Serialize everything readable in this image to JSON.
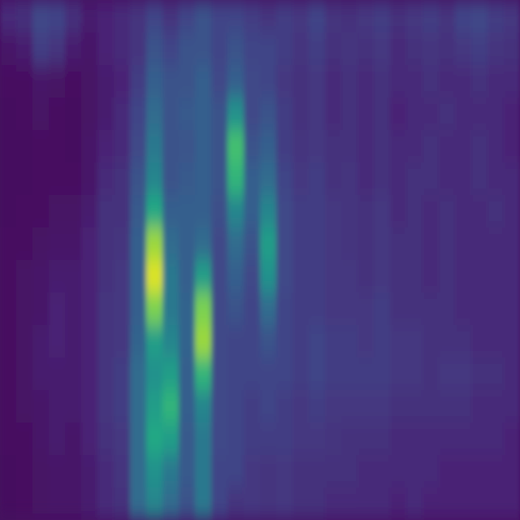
{
  "chart_data": {
    "type": "heatmap",
    "tick_labels": false,
    "zlim": [
      0,
      100
    ],
    "z": [
      [
        12,
        14,
        22,
        20,
        14,
        8,
        10,
        12,
        15,
        20,
        15,
        20,
        25,
        20,
        20,
        18,
        15,
        18,
        16,
        20,
        15,
        14,
        16,
        18,
        14,
        16,
        18,
        15,
        20,
        22,
        18,
        16
      ],
      [
        6,
        8,
        18,
        15,
        8,
        6,
        10,
        12,
        15,
        25,
        20,
        25,
        25,
        20,
        25,
        20,
        20,
        18,
        15,
        18,
        14,
        15,
        14,
        16,
        12,
        14,
        15,
        14,
        16,
        18,
        15,
        14
      ],
      [
        4,
        4,
        6,
        5,
        4,
        5,
        8,
        10,
        18,
        30,
        25,
        25,
        30,
        22,
        30,
        22,
        20,
        16,
        14,
        16,
        12,
        14,
        12,
        14,
        12,
        12,
        14,
        12,
        12,
        14,
        12,
        12
      ],
      [
        3,
        4,
        5,
        4,
        3,
        5,
        8,
        12,
        20,
        35,
        25,
        28,
        30,
        25,
        50,
        22,
        25,
        18,
        14,
        16,
        12,
        14,
        12,
        14,
        10,
        12,
        12,
        14,
        12,
        12,
        12,
        10
      ],
      [
        3,
        3,
        4,
        4,
        3,
        6,
        10,
        12,
        22,
        40,
        25,
        26,
        30,
        25,
        70,
        25,
        30,
        18,
        15,
        16,
        14,
        14,
        12,
        14,
        12,
        12,
        14,
        12,
        12,
        14,
        12,
        10
      ],
      [
        3,
        3,
        4,
        4,
        4,
        6,
        12,
        14,
        25,
        45,
        25,
        28,
        30,
        25,
        65,
        30,
        35,
        20,
        16,
        18,
        14,
        15,
        12,
        14,
        12,
        14,
        14,
        12,
        12,
        14,
        12,
        12
      ],
      [
        3,
        4,
        4,
        5,
        5,
        8,
        14,
        14,
        28,
        60,
        30,
        30,
        30,
        24,
        45,
        30,
        45,
        22,
        18,
        18,
        16,
        15,
        14,
        16,
        12,
        14,
        12,
        14,
        12,
        12,
        14,
        12
      ],
      [
        4,
        4,
        5,
        6,
        6,
        10,
        14,
        15,
        30,
        85,
        35,
        30,
        35,
        22,
        35,
        25,
        55,
        22,
        18,
        18,
        16,
        15,
        14,
        16,
        14,
        14,
        12,
        14,
        12,
        12,
        12,
        12
      ],
      [
        4,
        5,
        6,
        8,
        8,
        10,
        14,
        16,
        30,
        95,
        40,
        30,
        55,
        22,
        30,
        22,
        50,
        22,
        18,
        18,
        16,
        16,
        14,
        16,
        14,
        14,
        12,
        14,
        12,
        12,
        12,
        12
      ],
      [
        4,
        5,
        6,
        10,
        8,
        10,
        15,
        16,
        30,
        80,
        40,
        32,
        80,
        22,
        25,
        20,
        35,
        20,
        18,
        18,
        16,
        16,
        16,
        18,
        14,
        14,
        14,
        14,
        12,
        12,
        12,
        12
      ],
      [
        4,
        5,
        8,
        10,
        8,
        10,
        15,
        16,
        32,
        55,
        45,
        32,
        85,
        22,
        20,
        20,
        25,
        20,
        18,
        20,
        18,
        18,
        16,
        18,
        16,
        16,
        14,
        14,
        14,
        12,
        12,
        12
      ],
      [
        4,
        5,
        8,
        8,
        8,
        10,
        15,
        18,
        35,
        50,
        55,
        30,
        65,
        22,
        20,
        20,
        20,
        20,
        18,
        20,
        18,
        18,
        18,
        18,
        16,
        16,
        14,
        16,
        16,
        14,
        14,
        12
      ],
      [
        4,
        5,
        6,
        8,
        8,
        10,
        15,
        18,
        35,
        55,
        65,
        30,
        45,
        22,
        20,
        18,
        20,
        18,
        16,
        18,
        16,
        16,
        16,
        16,
        14,
        14,
        14,
        14,
        14,
        12,
        12,
        12
      ],
      [
        4,
        4,
        6,
        8,
        6,
        10,
        14,
        16,
        35,
        60,
        55,
        28,
        40,
        22,
        20,
        18,
        18,
        18,
        16,
        16,
        15,
        14,
        14,
        14,
        12,
        12,
        12,
        12,
        12,
        12,
        12,
        10
      ],
      [
        3,
        4,
        5,
        6,
        6,
        8,
        12,
        15,
        35,
        50,
        40,
        28,
        40,
        20,
        20,
        16,
        15,
        16,
        14,
        14,
        14,
        14,
        12,
        12,
        12,
        12,
        12,
        10,
        10,
        10,
        10,
        10
      ],
      [
        3,
        4,
        5,
        6,
        6,
        8,
        12,
        14,
        35,
        45,
        35,
        25,
        40,
        20,
        15,
        16,
        15,
        16,
        14,
        14,
        12,
        12,
        12,
        12,
        10,
        12,
        10,
        10,
        10,
        10,
        10,
        10
      ]
    ]
  }
}
